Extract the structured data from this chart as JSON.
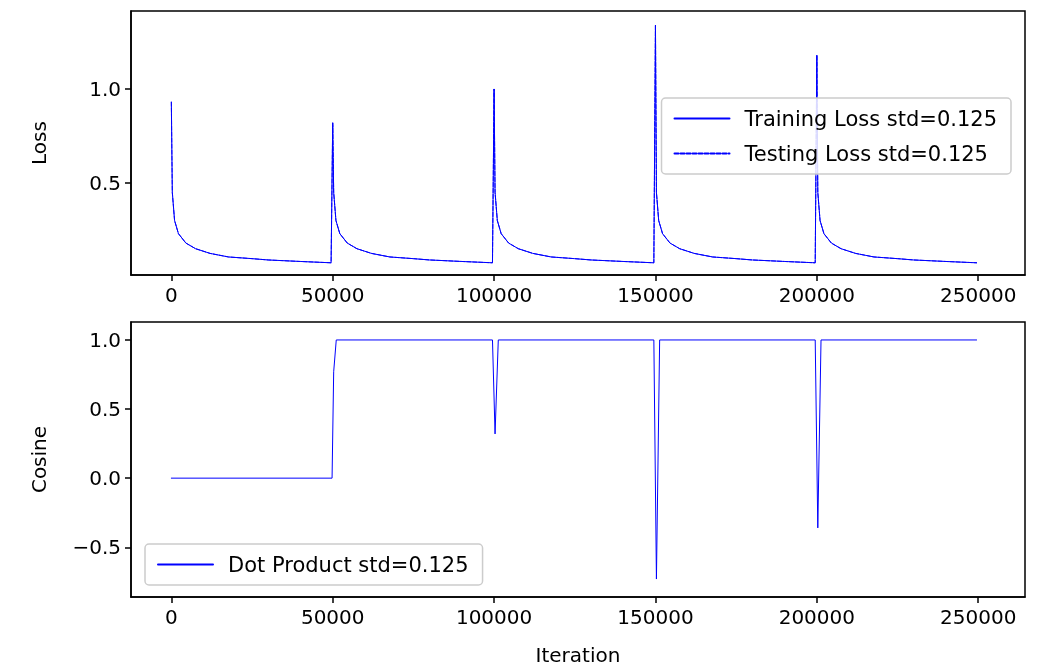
{
  "chart_data": [
    {
      "type": "line",
      "ylabel": "Loss",
      "xlim": [
        -12500,
        264500
      ],
      "xticks": [
        0,
        50000,
        100000,
        150000,
        200000,
        250000
      ],
      "ylim": [
        0.01,
        1.415
      ],
      "yticks": [
        {
          "value": 0.5,
          "label": "0.5"
        },
        {
          "value": 1,
          "label": "1.0"
        }
      ],
      "grid": false,
      "legend": "right",
      "marker": "none",
      "series": [
        {
          "name": "Training Loss std=0.125",
          "color": "#0000ff",
          "line_style": "solid",
          "x": [
            0,
            300,
            1000,
            2200,
            4500,
            7500,
            12000,
            17700,
            25000,
            30000,
            40000,
            49500,
            50000,
            50300,
            51000,
            52200,
            54500,
            57500,
            62000,
            67700,
            75000,
            80000,
            90000,
            99500,
            100000,
            100300,
            101000,
            102200,
            104500,
            107500,
            112000,
            117700,
            125000,
            130000,
            140000,
            149500,
            150000,
            150300,
            151000,
            152200,
            154500,
            157500,
            162000,
            167700,
            175000,
            180000,
            190000,
            199500,
            200000,
            200300,
            201000,
            202200,
            204500,
            207500,
            212000,
            217700,
            225000,
            230000,
            240000,
            249500
          ],
          "values": [
            0.93,
            0.45,
            0.3,
            0.23,
            0.18,
            0.15,
            0.125,
            0.106,
            0.097,
            0.09,
            0.082,
            0.075,
            0.82,
            0.45,
            0.3,
            0.23,
            0.18,
            0.15,
            0.125,
            0.106,
            0.097,
            0.09,
            0.082,
            0.075,
            1.0,
            0.45,
            0.3,
            0.23,
            0.18,
            0.15,
            0.125,
            0.106,
            0.097,
            0.09,
            0.082,
            0.075,
            1.34,
            0.45,
            0.3,
            0.23,
            0.18,
            0.15,
            0.125,
            0.106,
            0.097,
            0.09,
            0.082,
            0.075,
            1.18,
            0.45,
            0.3,
            0.23,
            0.18,
            0.15,
            0.125,
            0.106,
            0.097,
            0.09,
            0.082,
            0.075
          ]
        },
        {
          "name": "Testing Loss std=0.125",
          "color": "#0000ff",
          "line_style": "dashed",
          "x": [
            0,
            300,
            1000,
            2200,
            4500,
            7500,
            12000,
            17700,
            25000,
            30000,
            40000,
            49500,
            50000,
            50300,
            51000,
            52200,
            54500,
            57500,
            62000,
            67700,
            75000,
            80000,
            90000,
            99500,
            100000,
            100300,
            101000,
            102200,
            104500,
            107500,
            112000,
            117700,
            125000,
            130000,
            140000,
            149500,
            150000,
            150300,
            151000,
            152200,
            154500,
            157500,
            162000,
            167700,
            175000,
            180000,
            190000,
            199500,
            200000,
            200300,
            201000,
            202200,
            204500,
            207500,
            212000,
            217700,
            225000,
            230000,
            240000,
            249500
          ],
          "values": [
            0.93,
            0.45,
            0.3,
            0.23,
            0.18,
            0.15,
            0.125,
            0.106,
            0.097,
            0.09,
            0.082,
            0.075,
            0.82,
            0.45,
            0.3,
            0.23,
            0.18,
            0.15,
            0.125,
            0.106,
            0.097,
            0.09,
            0.082,
            0.075,
            1.0,
            0.45,
            0.3,
            0.23,
            0.18,
            0.15,
            0.125,
            0.106,
            0.097,
            0.09,
            0.082,
            0.075,
            1.34,
            0.45,
            0.3,
            0.23,
            0.18,
            0.15,
            0.125,
            0.106,
            0.097,
            0.09,
            0.082,
            0.075,
            1.18,
            0.45,
            0.3,
            0.23,
            0.18,
            0.15,
            0.125,
            0.106,
            0.097,
            0.09,
            0.082,
            0.075
          ]
        }
      ]
    },
    {
      "type": "line",
      "xlabel": "Iteration",
      "ylabel": "Cosine",
      "xlim": [
        -12500,
        264500
      ],
      "xticks": [
        0,
        50000,
        100000,
        150000,
        200000,
        250000
      ],
      "ylim": [
        -0.86,
        1.13
      ],
      "yticks": [
        {
          "value": -0.5,
          "label": "−0.5"
        },
        {
          "value": 0,
          "label": "0.0"
        },
        {
          "value": 0.5,
          "label": "0.5"
        },
        {
          "value": 1,
          "label": "1.0"
        }
      ],
      "grid": false,
      "legend": "bottom left",
      "marker": "none",
      "series": [
        {
          "name": "Dot Product std=0.125",
          "color": "#0000ff",
          "line_style": "solid",
          "x": [
            0,
            49800,
            50300,
            51100,
            99500,
            100300,
            101300,
            149500,
            150300,
            151300,
            199500,
            200300,
            201300,
            249500
          ],
          "values": [
            0,
            0,
            0.77,
            1.0,
            1.0,
            0.32,
            1.0,
            1.0,
            -0.73,
            1.0,
            1.0,
            -0.36,
            1.0,
            1.0
          ]
        }
      ]
    }
  ]
}
